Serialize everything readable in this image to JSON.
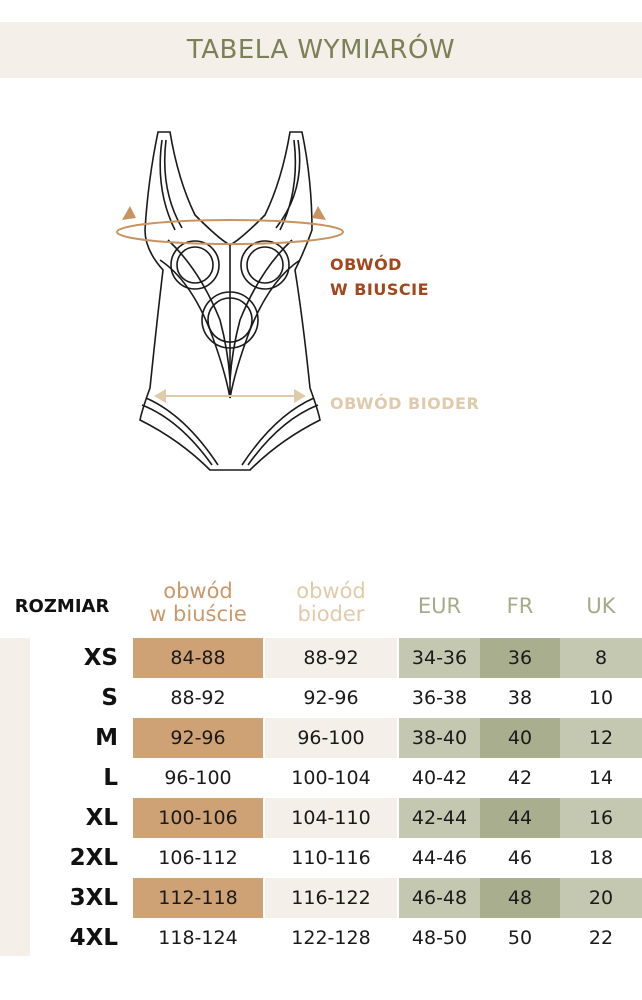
{
  "title": "TABELA WYMIARÓW",
  "figure": {
    "bust_label": [
      "OBWÓD",
      "W BIUSCIE"
    ],
    "hip_label": "OBWÓD BIODER"
  },
  "colors": {
    "bust": "#cfa276",
    "hip": "#f4efe8",
    "eur": "#c4c8b0",
    "fr": "#a9af8e",
    "uk": "#c4c8b0",
    "title": "#7b8055"
  },
  "table": {
    "headers": {
      "size": "ROZMIAR",
      "bust": [
        "obwód",
        "w biuście"
      ],
      "hip": [
        "obwód",
        "bioder"
      ],
      "eur": "EUR",
      "fr": "FR",
      "uk": "UK"
    },
    "rows": [
      {
        "size": "XS",
        "bust": "84-88",
        "hip": "88-92",
        "eur": "34-36",
        "fr": "36",
        "uk": "8"
      },
      {
        "size": "S",
        "bust": "88-92",
        "hip": "92-96",
        "eur": "36-38",
        "fr": "38",
        "uk": "10"
      },
      {
        "size": "M",
        "bust": "92-96",
        "hip": "96-100",
        "eur": "38-40",
        "fr": "40",
        "uk": "12"
      },
      {
        "size": "L",
        "bust": "96-100",
        "hip": "100-104",
        "eur": "40-42",
        "fr": "42",
        "uk": "14"
      },
      {
        "size": "XL",
        "bust": "100-106",
        "hip": "104-110",
        "eur": "42-44",
        "fr": "44",
        "uk": "16"
      },
      {
        "size": "2XL",
        "bust": "106-112",
        "hip": "110-116",
        "eur": "44-46",
        "fr": "46",
        "uk": "18"
      },
      {
        "size": "3XL",
        "bust": "112-118",
        "hip": "116-122",
        "eur": "46-48",
        "fr": "48",
        "uk": "20"
      },
      {
        "size": "4XL",
        "bust": "118-124",
        "hip": "122-128",
        "eur": "48-50",
        "fr": "50",
        "uk": "22"
      }
    ]
  }
}
